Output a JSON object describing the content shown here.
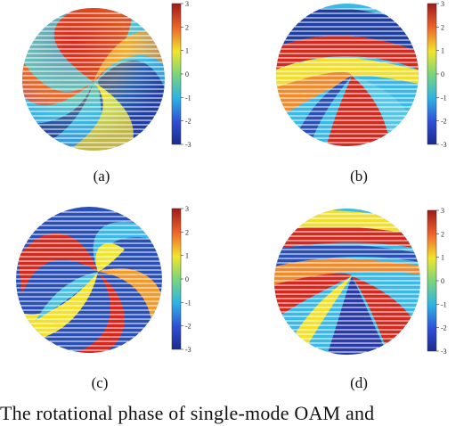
{
  "panels": [
    {
      "id": "a",
      "label": "(a)"
    },
    {
      "id": "b",
      "label": "(b)"
    },
    {
      "id": "c",
      "label": "(c)"
    },
    {
      "id": "d",
      "label": "(d)"
    }
  ],
  "colorbar": {
    "ticks": [
      "3",
      "2",
      "1",
      "0",
      "-1",
      "-2",
      "-3"
    ],
    "range": [
      -3,
      3
    ],
    "colormap": "jet"
  },
  "caption_fragment": "The rotational phase of single-mode OAM and"
}
